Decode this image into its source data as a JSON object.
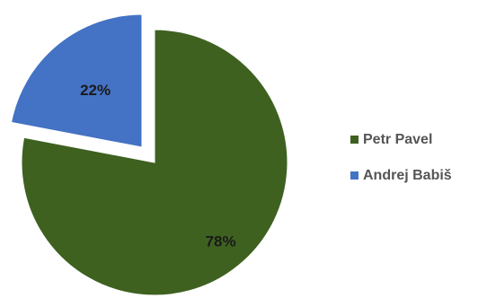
{
  "chart_data": {
    "type": "pie",
    "title": "",
    "categories": [
      "Petr Pavel",
      "Andrej Babiš"
    ],
    "values": [
      78,
      22
    ],
    "labels": [
      "78%",
      "22%"
    ],
    "colors": [
      "#3E6120",
      "#4472C4"
    ],
    "exploded": [
      false,
      true
    ],
    "legend_position": "right",
    "legend": [
      "Petr Pavel",
      "Andrej Babiš"
    ]
  }
}
